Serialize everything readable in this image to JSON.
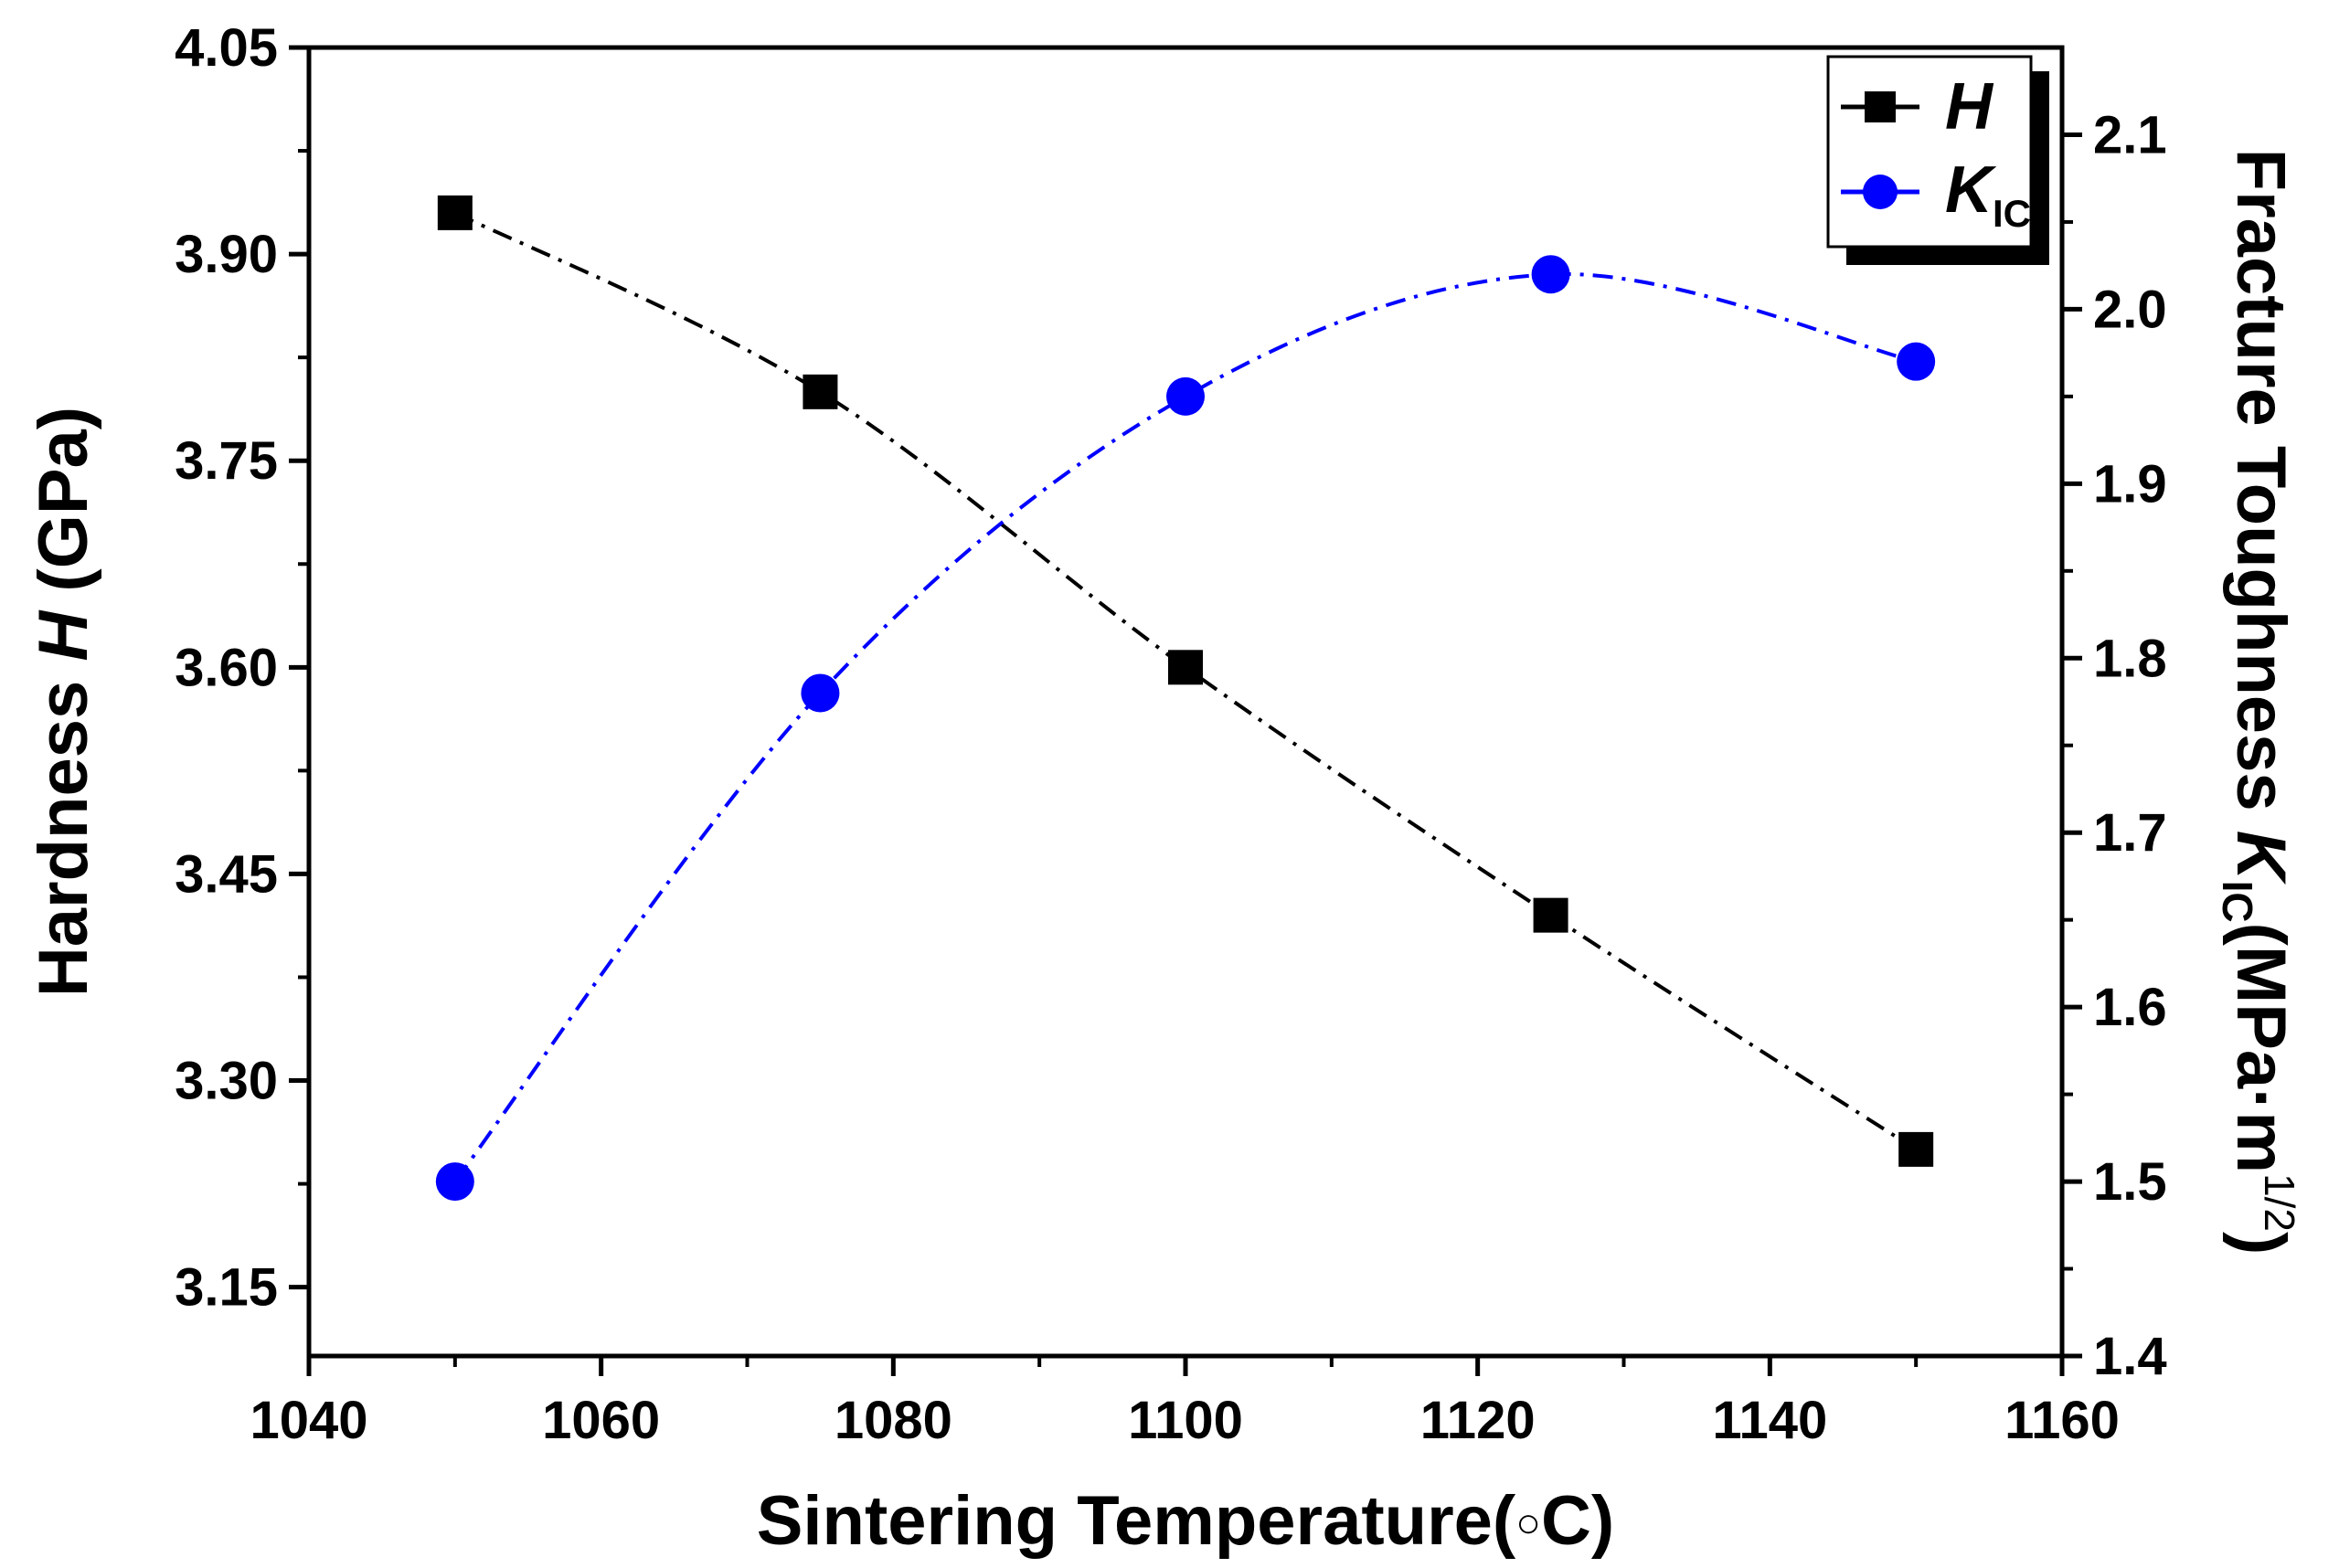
{
  "chart_data": {
    "type": "line",
    "x_axis": {
      "label_main": "Sintering Temperature(",
      "label_degree": "○",
      "label_unit": "C)",
      "range": [
        1040,
        1160
      ],
      "ticks": [
        1040,
        1060,
        1080,
        1100,
        1120,
        1140,
        1160
      ],
      "tick_labels": [
        "1040",
        "1060",
        "1080",
        "1100",
        "1120",
        "1140",
        "1160"
      ]
    },
    "y_left": {
      "label_main": "Hardness ",
      "label_symbol": "H",
      "label_unit": " (GPa)",
      "range": [
        3.1,
        4.05
      ],
      "ticks": [
        3.15,
        3.3,
        3.45,
        3.6,
        3.75,
        3.9,
        4.05
      ],
      "tick_labels": [
        "3.15",
        "3.30",
        "3.45",
        "3.60",
        "3.75",
        "3.90",
        "4.05"
      ]
    },
    "y_right": {
      "label_main": "Fracture Toughness ",
      "label_symbol": "K",
      "label_sub": "IC",
      "label_unit_open": "(MPa·m",
      "label_sup": "1/2",
      "label_unit_close": ")",
      "range": [
        1.4,
        2.15
      ],
      "ticks": [
        1.4,
        1.5,
        1.6,
        1.7,
        1.8,
        1.9,
        2.0,
        2.1
      ],
      "tick_labels": [
        "1.4",
        "1.5",
        "1.6",
        "1.7",
        "1.8",
        "1.9",
        "2.0",
        "2.1"
      ]
    },
    "x": [
      1050,
      1075,
      1100,
      1125,
      1150
    ],
    "series": [
      {
        "name": "H",
        "axis": "left",
        "marker": "square",
        "color": "#000000",
        "values": [
          3.93,
          3.8,
          3.6,
          3.42,
          3.25
        ]
      },
      {
        "name": "K",
        "name_sub": "IC",
        "axis": "right",
        "marker": "circle",
        "color": "#0000ff",
        "values": [
          1.5,
          1.78,
          1.95,
          2.02,
          1.97
        ]
      }
    ],
    "legend": {
      "position": "top-right"
    },
    "grid": false
  }
}
